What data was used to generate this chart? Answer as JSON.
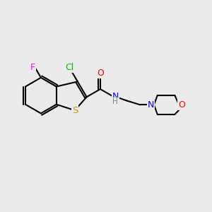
{
  "bg_color": "#ebebeb",
  "bond_color": "#000000",
  "bond_lw": 1.5,
  "atom_colors": {
    "S": "#b8a000",
    "N": "#0000ff",
    "O": "#ff0000",
    "F": "#ff00ff",
    "Cl": "#00bb00",
    "C": "#000000",
    "H": "#808080"
  },
  "font_size": 8.5
}
